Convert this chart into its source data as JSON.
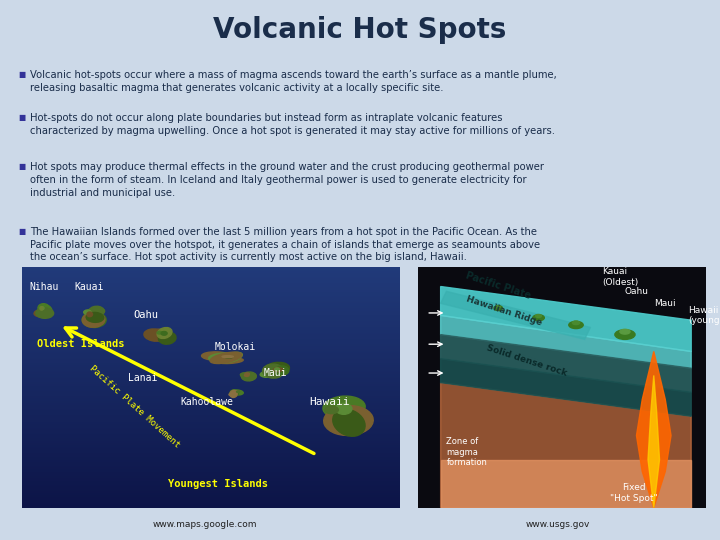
{
  "background_color": "#ccd9e8",
  "title": "Volcanic Hot Spots",
  "title_color": "#1a2d4a",
  "title_fontsize": 20,
  "bullet_color": "#1a2d4a",
  "bullet_marker_color": "#333399",
  "bullet_fontsize": 7.2,
  "bullets": [
    "Volcanic hot-spots occur where a mass of magma ascends toward the earth’s surface as a mantle plume,\nreleasing basaltic magma that generates volcanic activity at a locally specific site.",
    "Hot-spots do not occur along plate boundaries but instead form as intraplate volcanic features\ncharacterized by magma upwelling. Once a hot spot is generated it may stay active for millions of years.",
    "Hot spots may produce thermal effects in the ground water and the crust producing geothermal power\noften in the form of steam. In Iceland and Italy geothermal power is used to generate electricity for\nindustrial and municipal use.",
    "The Hawaiian Islands formed over the last 5 million years from a hot spot in the Pacific Ocean. As the\nPacific plate moves over the hotspot, it generates a chain of islands that emerge as seamounts above\nthe ocean’s surface. Hot spot activity is currently most active on the big island, Hawaii."
  ],
  "footer_left": "www.maps.google.com",
  "footer_right": "www.usgs.gov"
}
